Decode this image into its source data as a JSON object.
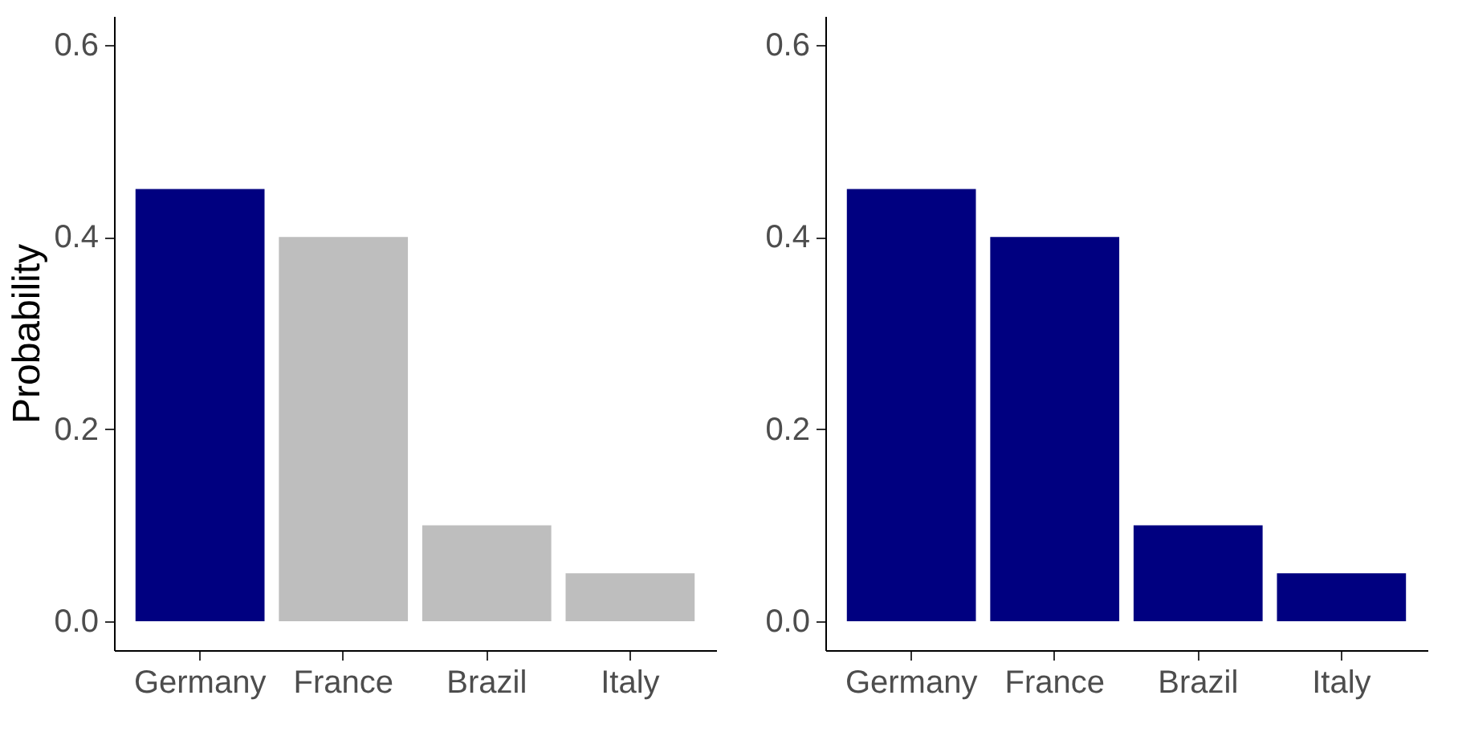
{
  "chart_data": [
    {
      "type": "bar",
      "ylabel": "Probability",
      "categories": [
        "Germany",
        "France",
        "Brazil",
        "Italy"
      ],
      "values": [
        0.45,
        0.4,
        0.1,
        0.05
      ],
      "colors": [
        "#000080",
        "#bebebe",
        "#bebebe",
        "#bebebe"
      ],
      "ylim": [
        -0.03,
        0.63
      ],
      "yticks": [
        {
          "value": 0,
          "label": "0.0"
        },
        {
          "value": 0.2,
          "label": "0.2"
        },
        {
          "value": 0.4,
          "label": "0.4"
        },
        {
          "value": 0.6,
          "label": "0.6"
        }
      ],
      "grid": false
    },
    {
      "type": "bar",
      "categories": [
        "Germany",
        "France",
        "Brazil",
        "Italy"
      ],
      "values": [
        0.45,
        0.4,
        0.1,
        0.05
      ],
      "colors": [
        "#000080",
        "#000080",
        "#000080",
        "#000080"
      ],
      "ylim": [
        -0.03,
        0.63
      ],
      "yticks": [
        {
          "value": 0,
          "label": "0.0"
        },
        {
          "value": 0.2,
          "label": "0.2"
        },
        {
          "value": 0.4,
          "label": "0.4"
        },
        {
          "value": 0.6,
          "label": "0.6"
        }
      ],
      "grid": false
    }
  ]
}
